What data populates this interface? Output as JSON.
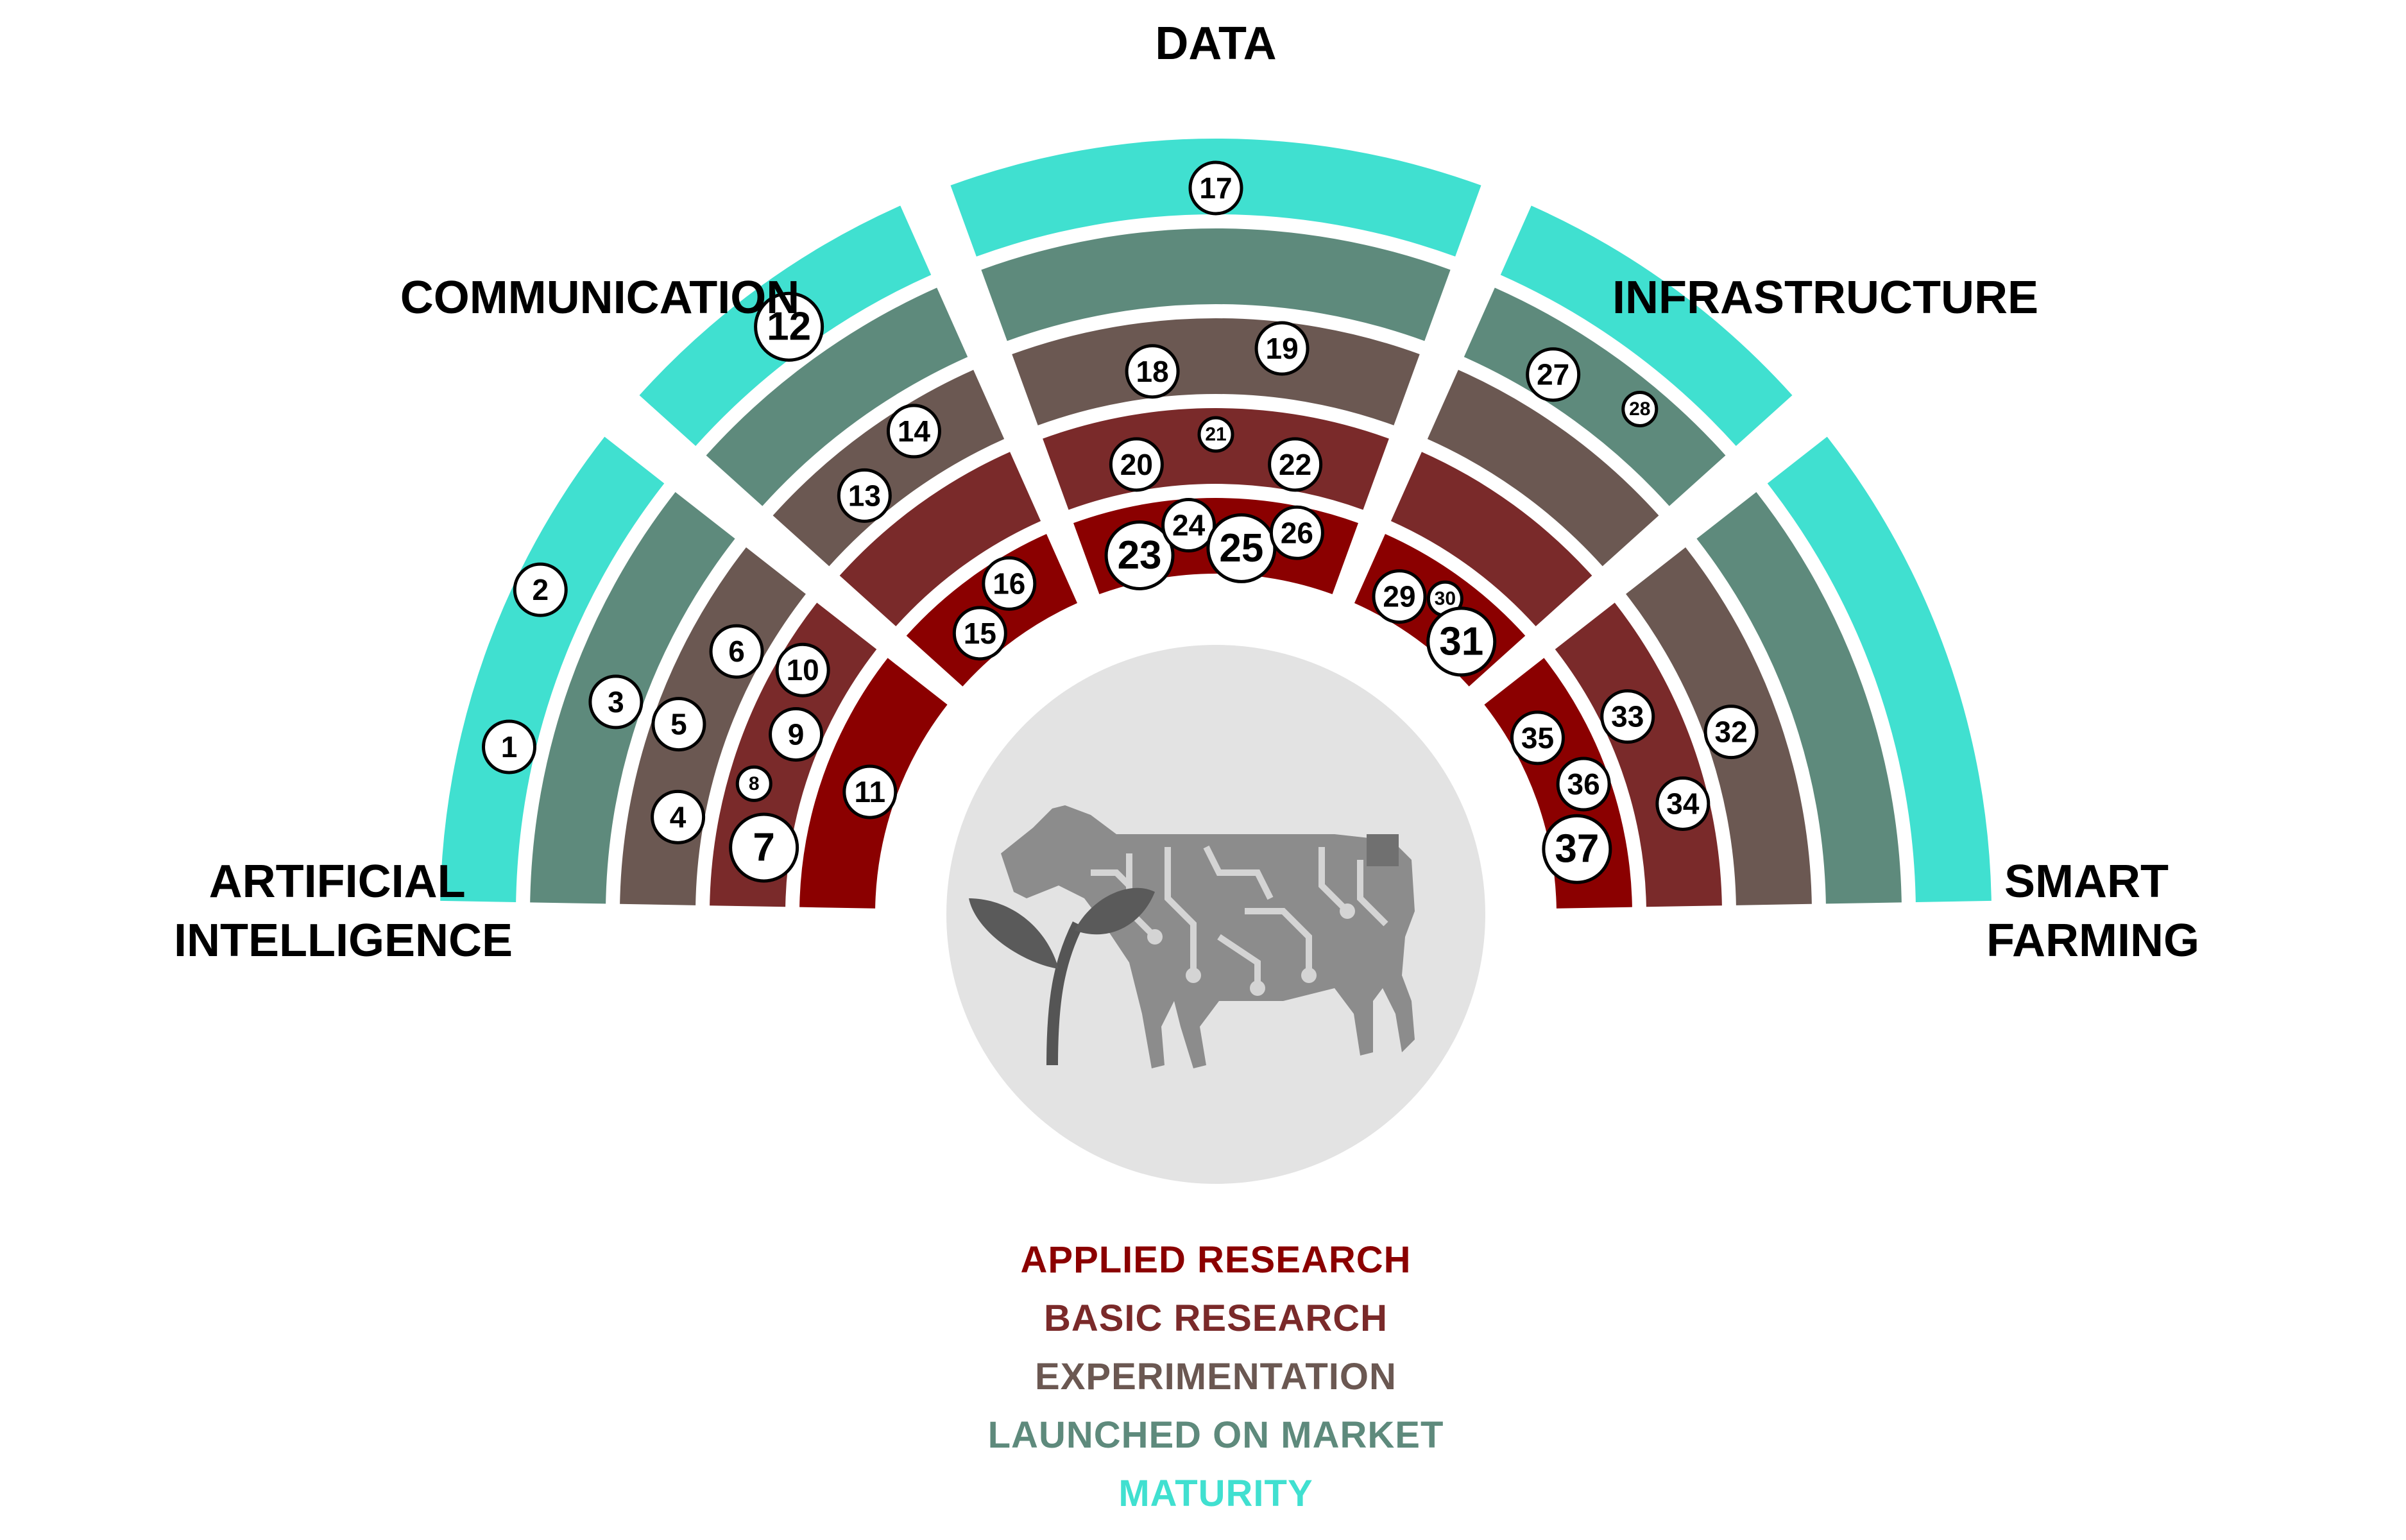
{
  "sectors": [
    {
      "key": "ai",
      "label_lines": [
        "ARTIFICIAL",
        "INTELLIGENCE"
      ]
    },
    {
      "key": "communication",
      "label_lines": [
        "COMMUNICATION"
      ]
    },
    {
      "key": "data",
      "label_lines": [
        "DATA"
      ]
    },
    {
      "key": "infrastructure",
      "label_lines": [
        "INFRASTRUCTURE"
      ]
    },
    {
      "key": "smart_farming",
      "label_lines": [
        "SMART",
        "FARMING"
      ]
    }
  ],
  "legend": [
    {
      "label": "APPLIED RESEARCH",
      "color": "#8B0000"
    },
    {
      "label": "BASIC RESEARCH",
      "color": "#7A2A2A"
    },
    {
      "label": "EXPERIMENTATION",
      "color": "#6B5852"
    },
    {
      "label": "LAUNCHED ON MARKET",
      "color": "#5E8A7C"
    },
    {
      "label": "MATURITY",
      "color": "#40E0D0"
    }
  ],
  "stage_colors": [
    "#8B0000",
    "#7A2A2A",
    "#6B5852",
    "#5E8A7C",
    "#40E0D0"
  ],
  "center_icon": "cow-circuit-with-plant-icon",
  "technologies": [
    {
      "n": "1",
      "sector": "ai",
      "stage": "maturity"
    },
    {
      "n": "2",
      "sector": "ai",
      "stage": "maturity"
    },
    {
      "n": "3",
      "sector": "ai",
      "stage": "launched"
    },
    {
      "n": "4",
      "sector": "ai",
      "stage": "experimentation"
    },
    {
      "n": "5",
      "sector": "ai",
      "stage": "experimentation"
    },
    {
      "n": "6",
      "sector": "ai",
      "stage": "experimentation"
    },
    {
      "n": "7",
      "sector": "ai",
      "stage": "basic"
    },
    {
      "n": "8",
      "sector": "ai",
      "stage": "basic"
    },
    {
      "n": "9",
      "sector": "ai",
      "stage": "basic"
    },
    {
      "n": "10",
      "sector": "ai",
      "stage": "basic"
    },
    {
      "n": "11",
      "sector": "ai",
      "stage": "applied"
    },
    {
      "n": "12",
      "sector": "communication",
      "stage": "maturity"
    },
    {
      "n": "13",
      "sector": "communication",
      "stage": "experimentation"
    },
    {
      "n": "14",
      "sector": "communication",
      "stage": "experimentation"
    },
    {
      "n": "15",
      "sector": "communication",
      "stage": "applied"
    },
    {
      "n": "16",
      "sector": "communication",
      "stage": "applied"
    },
    {
      "n": "17",
      "sector": "data",
      "stage": "maturity"
    },
    {
      "n": "18",
      "sector": "data",
      "stage": "experimentation"
    },
    {
      "n": "19",
      "sector": "data",
      "stage": "experimentation"
    },
    {
      "n": "20",
      "sector": "data",
      "stage": "basic"
    },
    {
      "n": "21",
      "sector": "data",
      "stage": "basic"
    },
    {
      "n": "22",
      "sector": "data",
      "stage": "basic"
    },
    {
      "n": "23",
      "sector": "data",
      "stage": "applied"
    },
    {
      "n": "24",
      "sector": "data",
      "stage": "applied"
    },
    {
      "n": "25",
      "sector": "data",
      "stage": "applied"
    },
    {
      "n": "26",
      "sector": "data",
      "stage": "applied"
    },
    {
      "n": "27",
      "sector": "infrastructure",
      "stage": "launched"
    },
    {
      "n": "28",
      "sector": "infrastructure",
      "stage": "launched"
    },
    {
      "n": "29",
      "sector": "infrastructure",
      "stage": "applied"
    },
    {
      "n": "30",
      "sector": "infrastructure",
      "stage": "applied"
    },
    {
      "n": "31",
      "sector": "infrastructure",
      "stage": "applied"
    },
    {
      "n": "32",
      "sector": "smart_farming",
      "stage": "experimentation"
    },
    {
      "n": "33",
      "sector": "smart_farming",
      "stage": "basic"
    },
    {
      "n": "34",
      "sector": "smart_farming",
      "stage": "basic"
    },
    {
      "n": "35",
      "sector": "smart_farming",
      "stage": "applied"
    },
    {
      "n": "36",
      "sector": "smart_farming",
      "stage": "applied"
    },
    {
      "n": "37",
      "sector": "smart_farming",
      "stage": "applied"
    }
  ]
}
